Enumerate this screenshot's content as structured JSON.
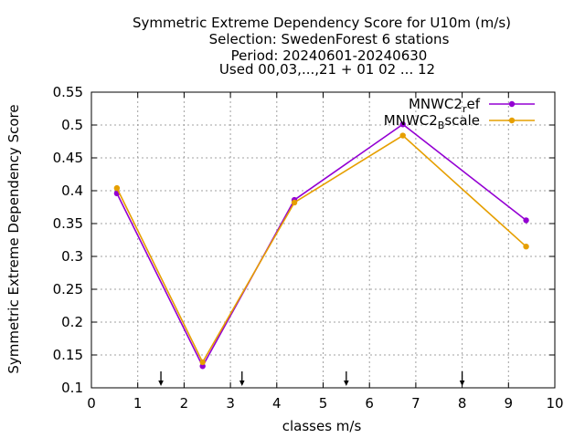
{
  "chart_data": {
    "type": "line",
    "title_lines": [
      "Symmetric Extreme Dependency Score  for U10m (m/s)",
      "Selection: SwedenForest      6 stations",
      "Period: 20240601-20240630",
      "Used 00,03,...,21 + 01 02 ... 12"
    ],
    "xlabel": "classes m/s",
    "ylabel": "Symmetric Extreme Dependency Score",
    "xlim": [
      0,
      10
    ],
    "ylim": [
      0.1,
      0.55
    ],
    "xticks": [
      "0",
      "1",
      "2",
      "3",
      "4",
      "5",
      "6",
      "7",
      "8",
      "9",
      "10"
    ],
    "yticks": [
      "0.1",
      "0.15",
      "0.2",
      "0.25",
      "0.3",
      "0.35",
      "0.4",
      "0.45",
      "0.5",
      "0.55"
    ],
    "grid": true,
    "legend_position": "top-right",
    "class_markers": [
      1.5,
      3.25,
      5.5,
      8.0
    ],
    "series": [
      {
        "name": "MNWC2",
        "name_sub": "r",
        "name_rest": "ef",
        "color": "#9400d3",
        "x": [
          0.55,
          2.4,
          4.38,
          6.72,
          9.38
        ],
        "y": [
          0.396,
          0.133,
          0.386,
          0.501,
          0.355
        ]
      },
      {
        "name": "MNWC2",
        "name_sub": "B",
        "name_rest": "scale",
        "color": "#e69f00",
        "x": [
          0.55,
          2.4,
          4.38,
          6.72,
          9.38
        ],
        "y": [
          0.404,
          0.139,
          0.382,
          0.484,
          0.315
        ]
      }
    ]
  }
}
